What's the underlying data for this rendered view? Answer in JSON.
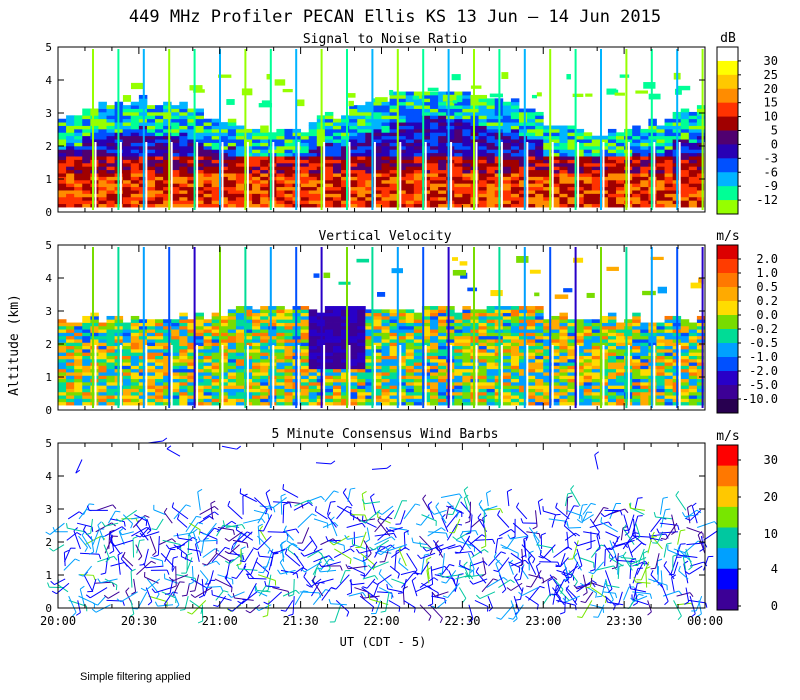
{
  "figure": {
    "title": "449 MHz Profiler PECAN Ellis KS 13 Jun — 14 Jun 2015",
    "y_axis_label": "Altitude (km)",
    "x_axis_label": "UT  (CDT - 5)",
    "footnote": "Simple filtering applied"
  },
  "chart_data": [
    {
      "type": "heatmap",
      "title": "Signal to Noise Ratio",
      "ylabel": "Altitude (km)",
      "ylim": [
        0,
        5
      ],
      "yticks": [
        "0",
        "1",
        "2",
        "3",
        "4",
        "5"
      ],
      "xticks": [
        "20:00",
        "20:30",
        "21:00",
        "21:30",
        "22:00",
        "22:30",
        "23:00",
        "23:30",
        "00:00"
      ],
      "colorbar": {
        "unit": "dB",
        "labels": [
          "30",
          "25",
          "20",
          "15",
          "10",
          "5",
          "0",
          "-3",
          "-6",
          "-9",
          "-12"
        ],
        "colors": [
          "#ffffff",
          "#ffff00",
          "#ffc800",
          "#ff8c00",
          "#ff3200",
          "#a00000",
          "#500070",
          "#2800b4",
          "#0050ff",
          "#00b4ff",
          "#00ff96",
          "#96ff00"
        ]
      }
    },
    {
      "type": "heatmap",
      "title": "Vertical Velocity",
      "ylabel": "Altitude (km)",
      "ylim": [
        0,
        5
      ],
      "yticks": [
        "0",
        "1",
        "2",
        "3",
        "4",
        "5"
      ],
      "xticks": [
        "20:00",
        "20:30",
        "21:00",
        "21:30",
        "22:00",
        "22:30",
        "23:00",
        "23:30",
        "00:00"
      ],
      "colorbar": {
        "unit": "m/s",
        "labels": [
          "2.0",
          "1.0",
          "0.5",
          "0.2",
          "0.0",
          "-0.2",
          "-0.5",
          "-1.0",
          "-2.0",
          "-5.0",
          "-10.0"
        ],
        "colors": [
          "#dc0000",
          "#ff3c00",
          "#ff7800",
          "#ffaa00",
          "#ffdc00",
          "#78dc00",
          "#00dc96",
          "#00a0ff",
          "#0050ff",
          "#2800c8",
          "#3c0096",
          "#280050"
        ]
      }
    },
    {
      "type": "scatter",
      "title": "5 Minute Consensus Wind Barbs",
      "ylabel": "Altitude (km)",
      "ylim": [
        0,
        5
      ],
      "yticks": [
        "0",
        "1",
        "2",
        "3",
        "4",
        "5"
      ],
      "xticks": [
        "20:00",
        "20:30",
        "21:00",
        "21:30",
        "22:00",
        "22:30",
        "23:00",
        "23:30",
        "00:00"
      ],
      "colorbar": {
        "unit": "m/s",
        "labels": [
          "30",
          "20",
          "10",
          "4",
          "0"
        ],
        "colors": [
          "#ff0000",
          "#ff7800",
          "#ffc800",
          "#78e600",
          "#00c8a0",
          "#00a0ff",
          "#0000ff",
          "#3c0096"
        ]
      }
    }
  ]
}
